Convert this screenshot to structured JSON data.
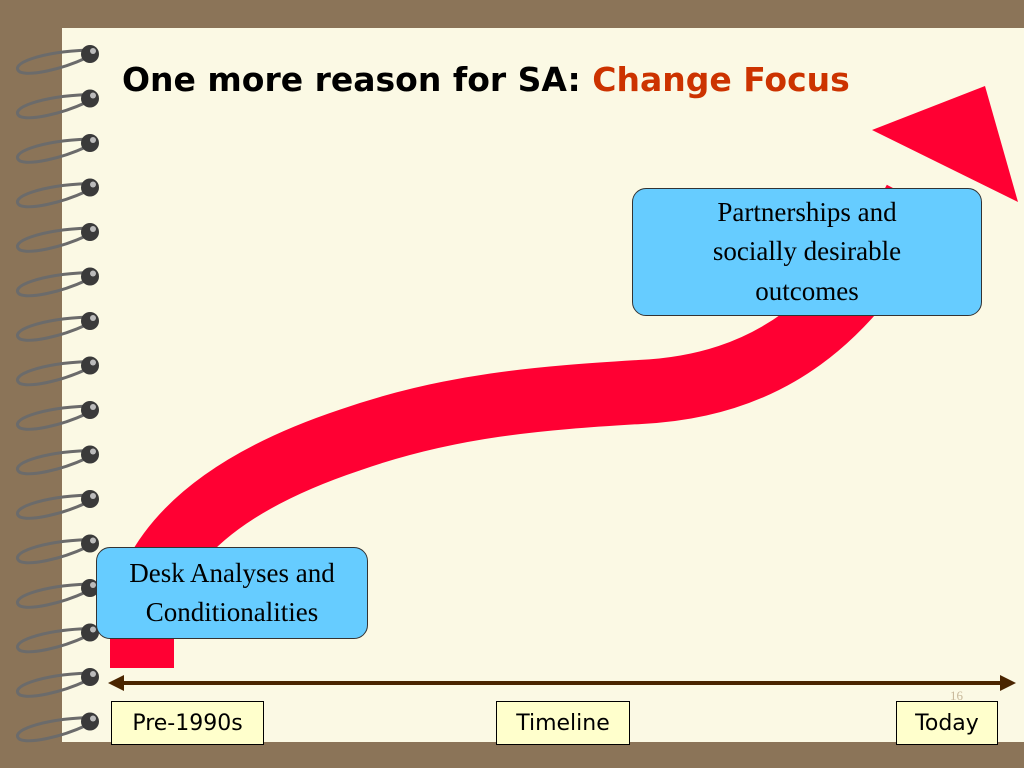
{
  "title": {
    "lead": "One more reason for SA:",
    "highlight": "Change Focus"
  },
  "boxes": [
    {
      "text": "Desk Analyses and Conditionalities"
    },
    {
      "text": "Partnerships and socially desirable outcomes"
    }
  ],
  "timeline": {
    "start": "Pre-1990s",
    "label": "Timeline",
    "end": "Today"
  },
  "page_number": "16"
}
